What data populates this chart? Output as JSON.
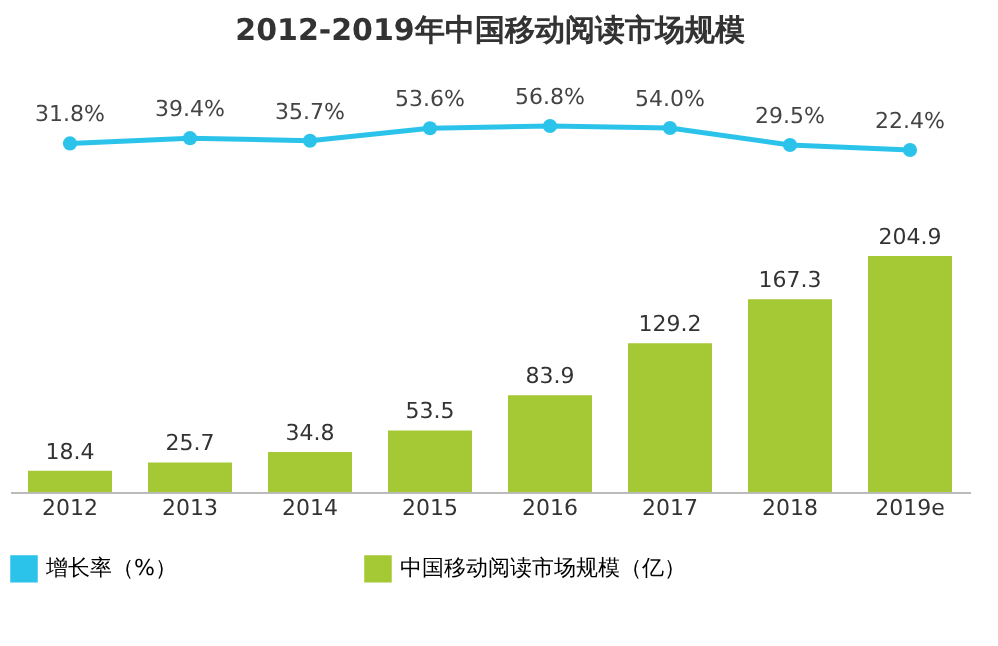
{
  "chart_data": [
    {
      "type": "line",
      "title": "2012-2019年中国移动阅读市场规模",
      "series": [
        {
          "name": "增长率（%）",
          "color": "#2cc3ea",
          "values": [
            31.8,
            39.4,
            35.7,
            53.6,
            56.8,
            54.0,
            29.5,
            22.4
          ],
          "value_labels": [
            "31.8%",
            "39.4%",
            "35.7%",
            "53.6%",
            "56.8%",
            "54.0%",
            "29.5%",
            "22.4%"
          ]
        }
      ],
      "marker": "circle",
      "tick_labels": false,
      "legend": "bottom"
    },
    {
      "type": "bar",
      "categories": [
        "2012",
        "2013",
        "2014",
        "2015",
        "2016",
        "2017",
        "2018",
        "2019e"
      ],
      "series": [
        {
          "name": "中国移动阅读市场规模（亿）",
          "color": "#a5c934",
          "values": [
            18.4,
            25.7,
            34.8,
            53.5,
            83.9,
            129.2,
            167.3,
            204.9
          ],
          "value_labels": [
            "18.4",
            "25.7",
            "34.8",
            "53.5",
            "83.9",
            "129.2",
            "167.3",
            "204.9"
          ]
        }
      ],
      "tick_labels": "x",
      "legend": "bottom"
    }
  ]
}
